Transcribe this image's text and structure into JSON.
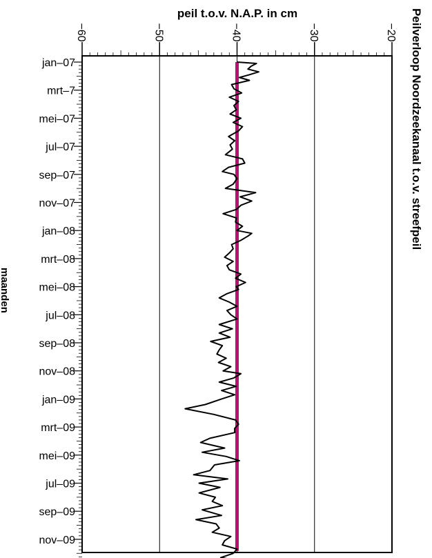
{
  "chart_data": {
    "type": "line",
    "title": "Peilverloop Noordzeekanaal t.o.v. streefpeil",
    "xlabel": "peil t.o.v. N.A.P. in cm",
    "ylabel": "maanden",
    "xlim": [
      -60,
      -20
    ],
    "x_ticks": [
      "−60",
      "−50",
      "−40",
      "−30",
      "−20"
    ],
    "x_tick_values": [
      -60,
      -50,
      -40,
      -30,
      -20
    ],
    "y_tick_labels": [
      "jan–07",
      "mrt–7",
      "mei–07",
      "jul–07",
      "sep–07",
      "nov–07",
      "jan–08",
      "mrt–08",
      "mei–08",
      "jul–08",
      "sep–08",
      "nov–08",
      "jan–09",
      "mrt–09",
      "mei–09",
      "jul–09",
      "sep–09",
      "nov–09"
    ],
    "y_range_months": [
      0,
      35.5
    ],
    "grid": "vertical",
    "series": [
      {
        "color": "#000000",
        "kind": "measured",
        "points": [
          [
            0.0,
            -40.0
          ],
          [
            0.1,
            -37.5
          ],
          [
            0.3,
            -38.2
          ],
          [
            0.5,
            -38.6
          ],
          [
            0.7,
            -37.2
          ],
          [
            0.9,
            -38.4
          ],
          [
            1.1,
            -39.7
          ],
          [
            1.3,
            -38.4
          ],
          [
            1.6,
            -40.7
          ],
          [
            1.9,
            -40.4
          ],
          [
            2.2,
            -39.4
          ],
          [
            2.5,
            -41.0
          ],
          [
            2.8,
            -39.8
          ],
          [
            3.1,
            -40.4
          ],
          [
            3.4,
            -40.1
          ],
          [
            3.7,
            -40.9
          ],
          [
            4.0,
            -39.5
          ],
          [
            4.3,
            -40.5
          ],
          [
            4.6,
            -39.3
          ],
          [
            4.9,
            -39.8
          ],
          [
            5.3,
            -41.1
          ],
          [
            5.6,
            -40.3
          ],
          [
            5.9,
            -40.9
          ],
          [
            6.2,
            -40.6
          ],
          [
            6.6,
            -41.5
          ],
          [
            6.9,
            -39.3
          ],
          [
            7.2,
            -39.0
          ],
          [
            7.5,
            -41.1
          ],
          [
            7.8,
            -41.9
          ],
          [
            8.0,
            -40.4
          ],
          [
            8.3,
            -40.0
          ],
          [
            8.7,
            -40.5
          ],
          [
            9.0,
            -41.5
          ],
          [
            9.3,
            -37.6
          ],
          [
            9.6,
            -39.6
          ],
          [
            9.9,
            -38.1
          ],
          [
            10.2,
            -39.5
          ],
          [
            10.5,
            -40.1
          ],
          [
            10.8,
            -41.8
          ],
          [
            11.1,
            -40.1
          ],
          [
            11.4,
            -40.2
          ],
          [
            11.7,
            -39.3
          ],
          [
            12.0,
            -40.0
          ],
          [
            12.2,
            -38.1
          ],
          [
            12.4,
            -38.6
          ],
          [
            12.7,
            -39.5
          ],
          [
            13.0,
            -40.7
          ],
          [
            13.3,
            -40.5
          ],
          [
            13.6,
            -41.0
          ],
          [
            13.9,
            -41.6
          ],
          [
            14.2,
            -40.5
          ],
          [
            14.5,
            -41.3
          ],
          [
            14.8,
            -41.0
          ],
          [
            15.1,
            -39.5
          ],
          [
            15.4,
            -40.2
          ],
          [
            15.7,
            -38.9
          ],
          [
            16.0,
            -40.1
          ],
          [
            16.2,
            -39.8
          ],
          [
            16.5,
            -41.3
          ],
          [
            16.8,
            -42.3
          ],
          [
            17.1,
            -41.0
          ],
          [
            17.4,
            -40.0
          ],
          [
            17.7,
            -41.3
          ],
          [
            18.0,
            -40.8
          ],
          [
            18.3,
            -40.0
          ],
          [
            18.7,
            -42.3
          ],
          [
            19.0,
            -40.6
          ],
          [
            19.3,
            -42.3
          ],
          [
            19.6,
            -40.9
          ],
          [
            19.9,
            -43.4
          ],
          [
            20.2,
            -41.9
          ],
          [
            20.5,
            -42.3
          ],
          [
            20.8,
            -42.6
          ],
          [
            21.1,
            -41.4
          ],
          [
            21.4,
            -42.4
          ],
          [
            21.7,
            -40.8
          ],
          [
            22.0,
            -41.8
          ],
          [
            22.2,
            -39.5
          ],
          [
            22.5,
            -40.4
          ],
          [
            22.8,
            -42.3
          ],
          [
            23.1,
            -40.1
          ],
          [
            23.4,
            -42.0
          ],
          [
            23.7,
            -40.3
          ],
          [
            24.0,
            -42.0
          ],
          [
            24.4,
            -44.1
          ],
          [
            24.7,
            -46.7
          ],
          [
            25.1,
            -43.0
          ],
          [
            25.5,
            -40.2
          ],
          [
            25.8,
            -39.8
          ],
          [
            26.1,
            -40.3
          ],
          [
            26.4,
            -40.3
          ],
          [
            26.8,
            -43.5
          ],
          [
            27.1,
            -44.7
          ],
          [
            27.5,
            -41.6
          ],
          [
            27.8,
            -44.5
          ],
          [
            28.1,
            -41.4
          ],
          [
            28.4,
            -39.7
          ],
          [
            28.7,
            -42.9
          ],
          [
            29.1,
            -43.5
          ],
          [
            29.4,
            -45.6
          ],
          [
            29.7,
            -41.2
          ],
          [
            30.0,
            -44.9
          ],
          [
            30.3,
            -42.2
          ],
          [
            30.7,
            -44.9
          ],
          [
            31.0,
            -42.8
          ],
          [
            31.3,
            -43.2
          ],
          [
            31.6,
            -41.9
          ],
          [
            31.9,
            -44.5
          ],
          [
            32.3,
            -42.0
          ],
          [
            32.6,
            -45.3
          ],
          [
            32.9,
            -42.7
          ],
          [
            33.2,
            -42.3
          ],
          [
            33.5,
            -43.2
          ],
          [
            33.8,
            -40.8
          ],
          [
            34.1,
            -41.6
          ],
          [
            34.4,
            -41.9
          ],
          [
            34.7,
            -40.0
          ],
          [
            35.0,
            -40.5
          ],
          [
            35.3,
            -42.1
          ],
          [
            35.5,
            -40.0
          ]
        ]
      },
      {
        "color": "#b5136f",
        "kind": "target",
        "value": -40.0
      }
    ]
  }
}
